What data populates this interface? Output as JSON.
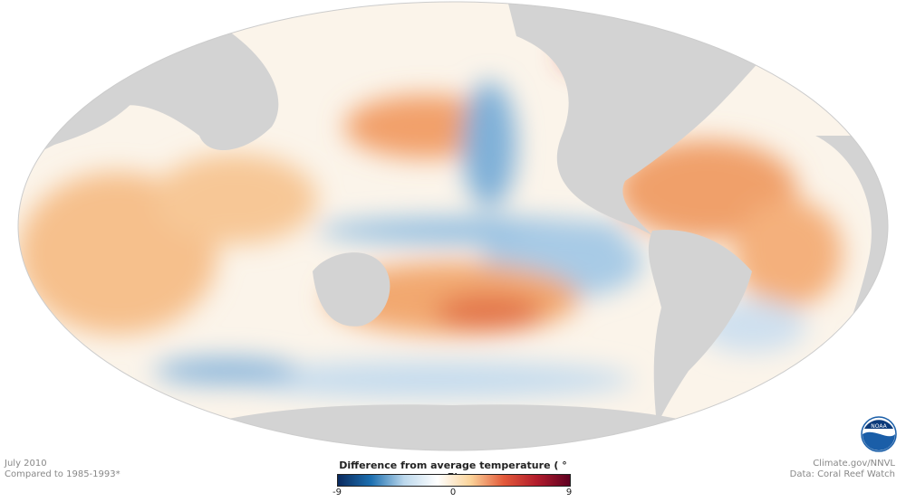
{
  "map": {
    "date": "July 2010",
    "baseline": "Compared to 1985-1993*",
    "credit": "Climate.gov/NNVL",
    "source": "Data: Coral Reef Watch",
    "projection": "Mollweide, Pacific-centered",
    "land_color": "#d3d3d3"
  },
  "legend": {
    "title": "Difference from average temperature ( ° F)",
    "min_label": "-9",
    "mid_label": "0",
    "max_label": "9",
    "colors": [
      "#0a2a5e",
      "#1c6fb0",
      "#bcd8ec",
      "#ffffff",
      "#fbd49a",
      "#e35a3a",
      "#b21c2c",
      "#5e0021"
    ]
  },
  "logo": {
    "text": "NOAA"
  }
}
